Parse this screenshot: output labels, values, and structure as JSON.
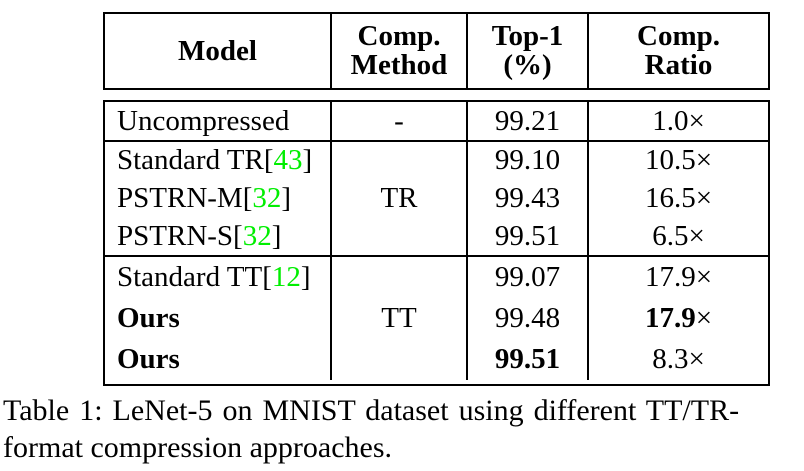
{
  "colors": {
    "citation_green": "#00ee00",
    "rule_black": "#000000"
  },
  "symbols": {
    "multiply": "×"
  },
  "header": {
    "columns": [
      {
        "line1": "Model",
        "line2": ""
      },
      {
        "line1": "Comp.",
        "line2": "Method"
      },
      {
        "line1": "Top-1",
        "line2": "(%)"
      },
      {
        "line1": "Comp.",
        "line2": "Ratio"
      }
    ]
  },
  "rows": {
    "uncompressed": {
      "model": "Uncompressed",
      "method": "-",
      "top1": "99.21",
      "ratio": "1.0"
    },
    "tr_section": {
      "method": "TR",
      "models": [
        {
          "prefix": "Standard TR[",
          "cite": "43",
          "suffix": "]"
        },
        {
          "prefix": "PSTRN-M[",
          "cite": "32",
          "suffix": "]"
        },
        {
          "prefix": "PSTRN-S[",
          "cite": "32",
          "suffix": "]"
        }
      ],
      "top1": [
        "99.10",
        "99.43",
        "99.51"
      ],
      "ratios": [
        "10.5",
        "16.5",
        "6.5"
      ]
    },
    "tt_section": {
      "method": "TT",
      "models": [
        {
          "prefix": "Standard TT[",
          "cite": "12",
          "suffix": "]"
        },
        {
          "prefix": "Ours",
          "cite": "",
          "suffix": ""
        },
        {
          "prefix": "Ours",
          "cite": "",
          "suffix": ""
        }
      ],
      "top1": [
        "99.07",
        "99.48",
        "99.51"
      ],
      "ratios": [
        "17.9",
        "17.9",
        "8.3"
      ]
    }
  },
  "caption": {
    "line1": "Table 1: LeNet-5 on MNIST dataset using different TT/TR-",
    "line2": "format compression approaches."
  }
}
